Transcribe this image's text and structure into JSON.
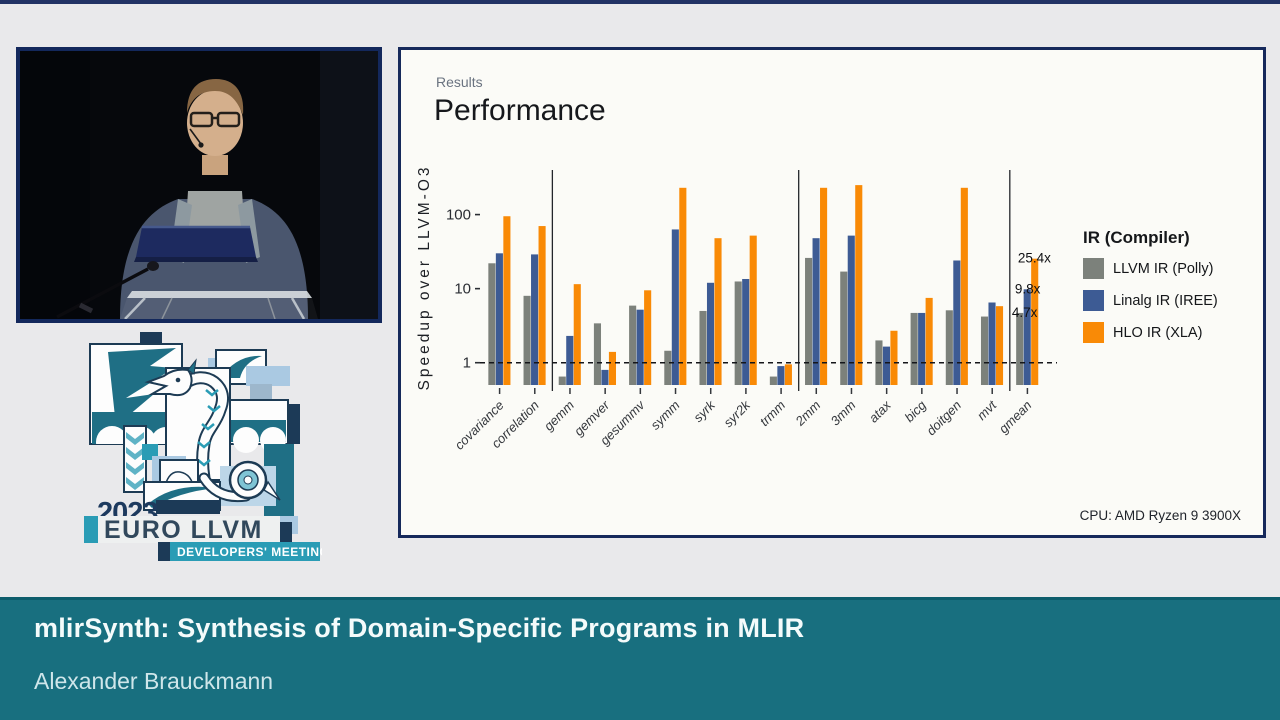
{
  "colors": {
    "frame_navy": "#16295b",
    "background_gray": "#e9e9eb",
    "banner_teal": "#186f7f",
    "logo_teal": "#1f6f85",
    "logo_bright_teal": "#2a9cb5",
    "logo_navy": "#1c3a57",
    "series_gray": "#7c817b",
    "series_blue": "#3d5b94",
    "series_orange": "#f98a06"
  },
  "logo": {
    "year": "2023",
    "title": "EURO LLVM",
    "subtitle": "DEVELOPERS' MEETING"
  },
  "slide": {
    "kicker": "Results",
    "title": "Performance",
    "cpu_note": "CPU: AMD Ryzen 9 3900X"
  },
  "banner": {
    "title": "mlirSynth: Synthesis of Domain-Specific Programs in MLIR",
    "author": "Alexander Brauckmann"
  },
  "chart_data": {
    "type": "bar",
    "title": "Performance",
    "kicker": "Results",
    "ylabel": "Speedup over LLVM-O3",
    "yscale": "log",
    "ylim": [
      0.5,
      400
    ],
    "yticks": [
      1,
      10,
      100
    ],
    "grid": "off",
    "baseline": {
      "value": 1,
      "style": "dashed"
    },
    "categories": [
      "covariance",
      "correlation",
      "gemm",
      "gemver",
      "gesummv",
      "symm",
      "syrk",
      "syr2k",
      "trmm",
      "2mm",
      "3mm",
      "atax",
      "bicg",
      "doitgen",
      "mvt",
      "gmean"
    ],
    "series": [
      {
        "name": "LLVM IR (Polly)",
        "color": "#7c817b",
        "values": [
          22,
          8,
          0.65,
          3.4,
          5.9,
          1.45,
          5,
          12.5,
          0.65,
          26,
          17,
          2,
          4.7,
          5.1,
          4.2,
          4.7
        ]
      },
      {
        "name": "Linalg IR (IREE)",
        "color": "#3d5b94",
        "values": [
          30,
          29,
          2.3,
          0.8,
          5.2,
          63,
          12,
          13.5,
          0.9,
          48,
          52,
          1.65,
          4.7,
          24,
          6.5,
          9.8
        ]
      },
      {
        "name": "HLO IR (XLA)",
        "color": "#f98a06",
        "values": [
          95,
          70,
          11.5,
          1.4,
          9.5,
          230,
          48,
          52,
          0.95,
          230,
          250,
          2.7,
          7.5,
          230,
          5.8,
          25.4
        ]
      }
    ],
    "legend": {
      "title": "IR (Compiler)",
      "position": "right"
    },
    "separators_after_category_index": [
      1,
      8,
      14
    ],
    "annotations": [
      {
        "text": "25.4x",
        "category": "gmean",
        "series": 2,
        "value": 25.4
      },
      {
        "text": "9.8x",
        "category": "gmean",
        "series": 1,
        "value": 9.8
      },
      {
        "text": "4.7x",
        "category": "gmean",
        "series": 0,
        "value": 4.7
      }
    ],
    "note": "CPU: AMD Ryzen 9 3900X"
  }
}
